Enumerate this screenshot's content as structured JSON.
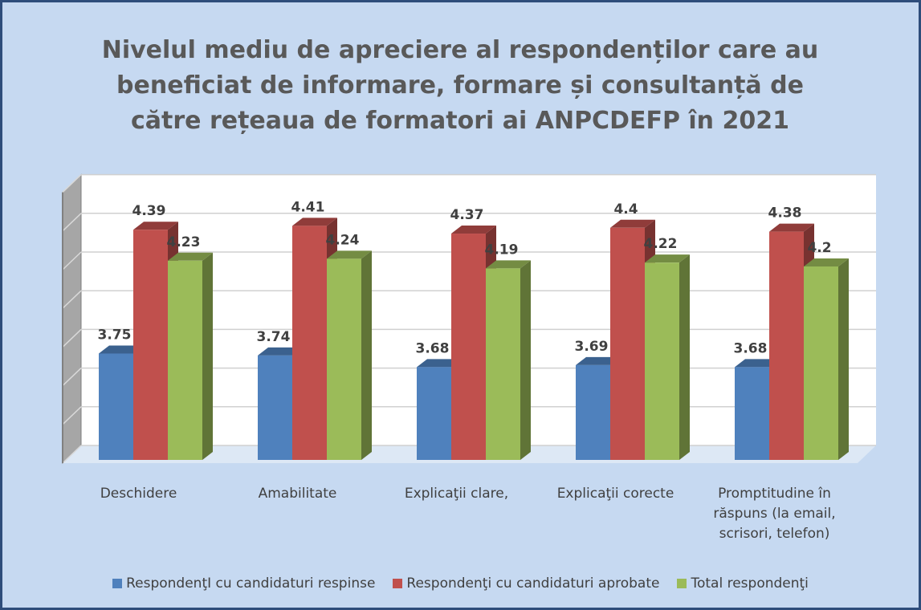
{
  "chart_data": {
    "type": "bar3d",
    "title": "Nivelul mediu de apreciere al respondenților care au beneficiat de informare, formare și consultanță de către rețeaua de formatori ai ANPCDEFP în 2021",
    "categories": [
      "Deschidere",
      "Amabilitate",
      "Explicaţii clare,",
      "Explicaţii corecte",
      "Promptitudine în răspuns (la email, scrisori, telefon)"
    ],
    "series": [
      {
        "name": "RespondenţI cu candidaturi respinse",
        "color": "#4f81bd",
        "values": [
          3.75,
          3.74,
          3.68,
          3.69,
          3.68
        ]
      },
      {
        "name": "Respondenţi cu candidaturi aprobate",
        "color": "#c0504d",
        "values": [
          4.39,
          4.41,
          4.37,
          4.4,
          4.38
        ]
      },
      {
        "name": "Total respondenţi",
        "color": "#9bbb59",
        "values": [
          4.23,
          4.24,
          4.19,
          4.22,
          4.2
        ]
      }
    ],
    "ylim": [
      3.2,
      4.6
    ],
    "yticks": [
      3.2,
      3.4,
      3.6,
      3.8,
      4.0,
      4.2,
      4.4,
      4.6
    ],
    "grid": true,
    "legend": "bottom"
  }
}
